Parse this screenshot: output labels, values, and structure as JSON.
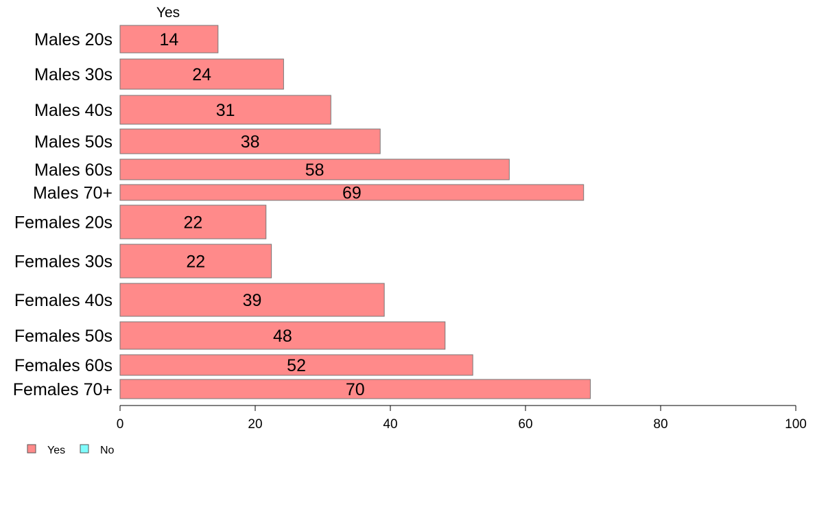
{
  "chart_data": {
    "type": "bar",
    "orientation": "horizontal",
    "column_header": "Yes",
    "categories": [
      "Males 20s",
      "Males 30s",
      "Males 40s",
      "Males 50s",
      "Males 60s",
      "Males 70+",
      "Females 20s",
      "Females 30s",
      "Females 40s",
      "Females 50s",
      "Females 60s",
      "Females 70+"
    ],
    "series": [
      {
        "name": "Yes",
        "color": "#ff8a8a",
        "values": [
          14.5,
          24.2,
          31.2,
          38.5,
          57.6,
          68.6,
          21.6,
          22.4,
          39.1,
          48.1,
          52.2,
          69.6
        ],
        "labels": [
          "14",
          "24",
          "31",
          "38",
          "58",
          "69",
          "22",
          "22",
          "39",
          "48",
          "52",
          "70"
        ]
      }
    ],
    "legend": [
      {
        "label": "Yes",
        "color": "#ff8a8a"
      },
      {
        "label": "No",
        "color": "#7ffcfc"
      }
    ],
    "xlim": [
      0,
      100
    ],
    "xticks": [
      0,
      20,
      40,
      60,
      80,
      100
    ],
    "xlabel": "",
    "ylabel": "",
    "grid": false,
    "legend_position": "bottom-left"
  }
}
